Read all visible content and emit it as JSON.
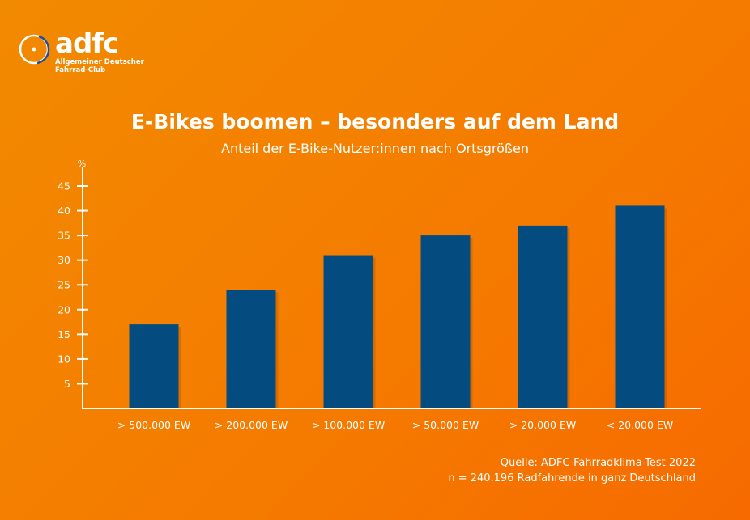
{
  "logo": {
    "word": "adfc",
    "line1": "Allgemeiner Deutscher",
    "line2": "Fahrrad-Club"
  },
  "chart_data": {
    "type": "bar",
    "title": "E-Bikes boomen – besonders auf dem Land",
    "subtitle": "Anteil der E-Bike-Nutzer:innen nach Ortsgrößen",
    "ylabel": "%",
    "xlabel": "",
    "categories": [
      "> 500.000 EW",
      "> 200.000 EW",
      "> 100.000 EW",
      "> 50.000 EW",
      "> 20.000 EW",
      "< 20.000 EW"
    ],
    "values": [
      17,
      24,
      31,
      35,
      37,
      41
    ],
    "ylim": [
      0,
      45
    ],
    "yticks": [
      5,
      10,
      15,
      20,
      25,
      30,
      35,
      40,
      45
    ],
    "grid": false,
    "bar_color": "#044c7f",
    "background_color": "#f57f00"
  },
  "source": {
    "line1": "Quelle: ADFC-Fahrradklima-Test 2022",
    "line2": "n = 240.196 Radfahrende in ganz Deutschland"
  }
}
